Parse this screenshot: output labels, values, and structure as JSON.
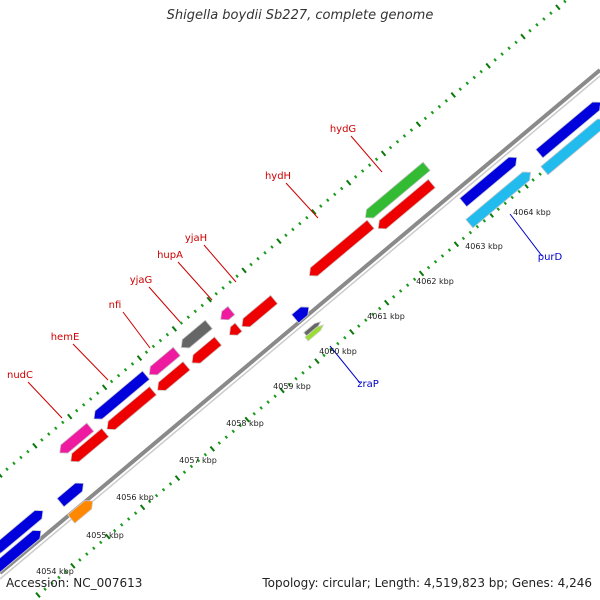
{
  "title": "Shigella boydii Sb227, complete genome",
  "footer": {
    "accession": "Accession: NC_007613",
    "summary": "Topology: circular; Length: 4,519,823 bp; Genes: 4,246"
  },
  "colors": {
    "backbone": "#8a8a8a",
    "tick_major": "#0a7a0a",
    "tick_minor": "#1a9a1a",
    "label_minus": "#cc0000",
    "label_plus": "#0000cc"
  },
  "scale_labels": [
    "4054 kbp",
    "4055 kbp",
    "4056 kbp",
    "4057 kbp",
    "4058 kbp",
    "4059 kbp",
    "4060 kbp",
    "4061 kbp",
    "4062 kbp",
    "4063 kbp",
    "4064 kbp"
  ],
  "genes_minus_labels": [
    {
      "name": "nudC"
    },
    {
      "name": "hemE"
    },
    {
      "name": "nfi"
    },
    {
      "name": "yjaG"
    },
    {
      "name": "hupA"
    },
    {
      "name": "yjaH"
    },
    {
      "name": "hydH"
    },
    {
      "name": "hydG"
    }
  ],
  "genes_plus_labels": [
    {
      "name": "zraP"
    },
    {
      "name": "purD"
    }
  ],
  "feature_colors": {
    "red": "#ee0000",
    "blue": "#0000dd",
    "magenta": "#ee1aa0",
    "gray": "#666666",
    "green": "#33bb33",
    "cyan": "#22bbee",
    "orange": "#ff8800",
    "lime": "#99dd33"
  }
}
